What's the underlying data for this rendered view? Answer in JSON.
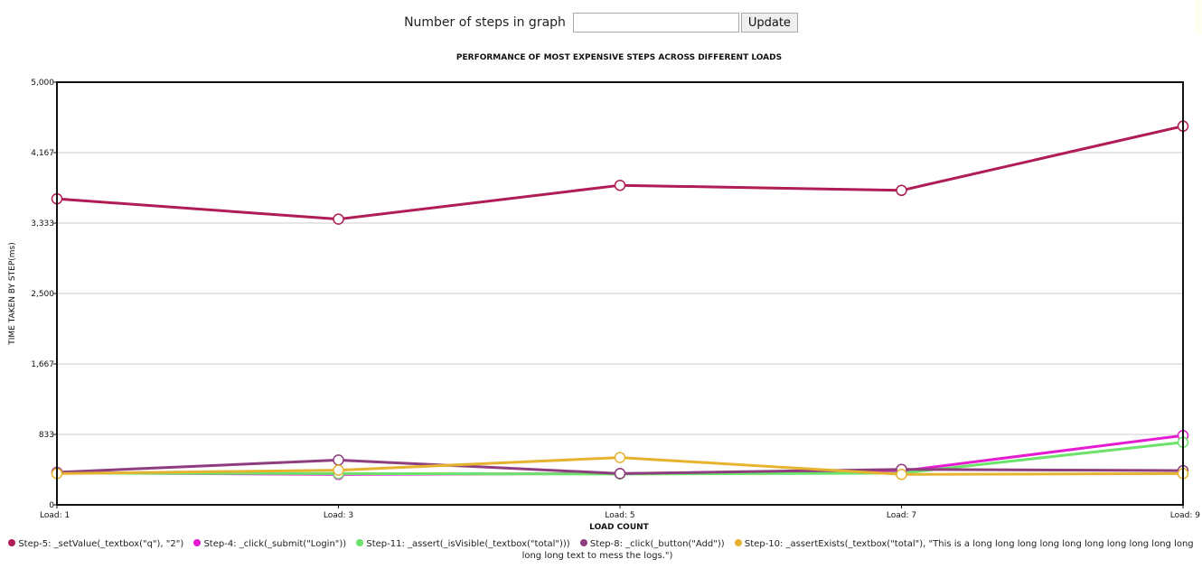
{
  "controls": {
    "steps_label": "Number of steps in graph",
    "steps_value": "",
    "update_label": "Update"
  },
  "chart_data": {
    "type": "line",
    "title": "PERFORMANCE OF MOST EXPENSIVE STEPS ACROSS DIFFERENT LOADS",
    "xlabel": "LOAD COUNT",
    "ylabel": "TIME TAKEN BY STEP(ms)",
    "categories": [
      "Load: 1",
      "Load: 3",
      "Load: 5",
      "Load: 7",
      "Load: 9"
    ],
    "ylim": [
      0,
      5000
    ],
    "yticks": [
      "0",
      "833",
      "1,667",
      "2,500",
      "3,333",
      "4,167",
      "5,000"
    ],
    "grid": true,
    "legend_position": "bottom",
    "series": [
      {
        "name": "Step-5: _setValue(_textbox(\"q\"), \"2\")",
        "color": "#b01c55",
        "values": [
          3620,
          3380,
          3780,
          3720,
          4480
        ]
      },
      {
        "name": "Step-4: _click(_submit(\"Login\"))",
        "color": "#e41bd0",
        "values": [
          380,
          360,
          370,
          400,
          820
        ]
      },
      {
        "name": "Step-11: _assert(_isVisible(_textbox(\"total\")))",
        "color": "#6be36b",
        "values": [
          375,
          370,
          365,
          375,
          740
        ]
      },
      {
        "name": "Step-8: _click(_button(\"Add\"))",
        "color": "#8e3e7e",
        "values": [
          385,
          530,
          370,
          420,
          405
        ]
      },
      {
        "name": "Step-10: _assertExists(_textbox(\"total\"), \"This is a long long long long long long long long long long long long text to mess the logs.\")",
        "color": "#e6b330",
        "values": [
          370,
          410,
          560,
          360,
          370
        ]
      }
    ]
  }
}
